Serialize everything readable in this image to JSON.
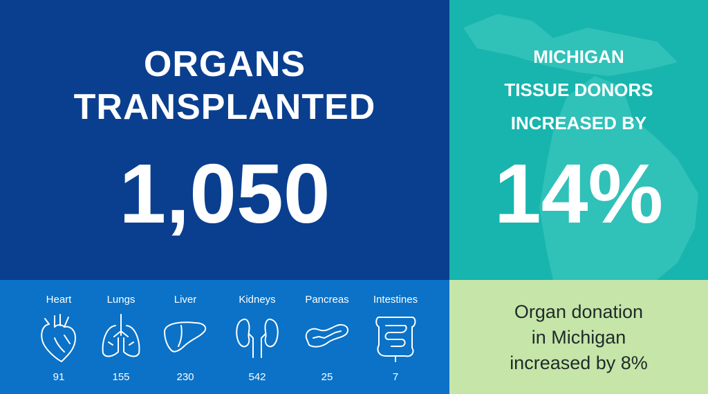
{
  "transplants": {
    "title": [
      "ORGANS",
      "TRANSPLANTED"
    ],
    "total": "1,050",
    "organs": [
      {
        "name": "Heart",
        "count": 91
      },
      {
        "name": "Lungs",
        "count": 155
      },
      {
        "name": "Liver",
        "count": 230
      },
      {
        "name": "Kidneys",
        "count": 542
      },
      {
        "name": "Pancreas",
        "count": 25
      },
      {
        "name": "Intestines",
        "count": 7
      }
    ]
  },
  "tissue": {
    "title": [
      "MICHIGAN",
      "TISSUE DONORS",
      "INCREASED BY"
    ],
    "value": "14%"
  },
  "donation": {
    "text": [
      "Organ donation",
      "in Michigan",
      "increased by 8%"
    ]
  }
}
